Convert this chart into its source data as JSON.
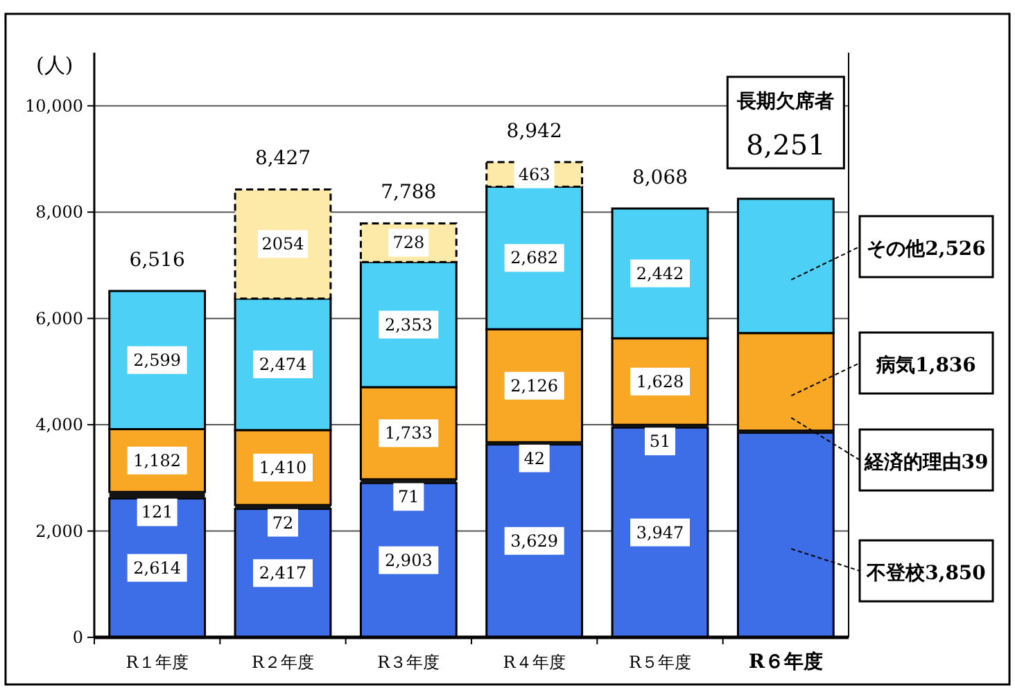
{
  "chart_data": {
    "type": "bar",
    "stacked": true,
    "ylabel": "(人)",
    "categories": [
      "R１年度",
      "R２年度",
      "R３年度",
      "R４年度",
      "R５年度",
      "R６年度"
    ],
    "series": [
      {
        "name": "不登校",
        "color": "#3d6ee8",
        "values": [
          2614,
          2417,
          2903,
          3629,
          3947,
          3850
        ],
        "value_labels": [
          "2,614",
          "2,417",
          "2,903",
          "3,629",
          "3,947",
          "3,850"
        ]
      },
      {
        "name": "経済的理由",
        "color": "#141414",
        "values": [
          121,
          72,
          71,
          42,
          51,
          39
        ],
        "value_labels": [
          "121",
          "72",
          "71",
          "42",
          "51",
          "39"
        ]
      },
      {
        "name": "病気",
        "color": "#f9a825",
        "values": [
          1182,
          1410,
          1733,
          2126,
          1628,
          1836
        ],
        "value_labels": [
          "1,182",
          "1,410",
          "1,733",
          "2,126",
          "1,628",
          "1,836"
        ]
      },
      {
        "name": "その他",
        "color": "#4dd0f5",
        "values": [
          2599,
          2474,
          2353,
          2682,
          2442,
          2526
        ],
        "value_labels": [
          "2,599",
          "2,474",
          "2,353",
          "2,682",
          "2,442",
          "2,526"
        ]
      },
      {
        "color": "#fde9a8",
        "line_style": "dashed",
        "values": [
          null,
          2054,
          728,
          463,
          null,
          null
        ],
        "value_labels": [
          null,
          "2054",
          "728",
          "463",
          null,
          null
        ]
      }
    ],
    "totals": [
      "6,516",
      "8,427",
      "7,788",
      "8,942",
      "8,068",
      "8,251"
    ],
    "annotations": [
      "長期欠席者"
    ],
    "ylim": [
      0,
      11000
    ],
    "yticks": [
      {
        "value": 0,
        "label": "0"
      },
      {
        "value": 2000,
        "label": "2,000"
      },
      {
        "value": 4000,
        "label": "4,000"
      },
      {
        "value": 6000,
        "label": "6,000"
      },
      {
        "value": 8000,
        "label": "8,000"
      },
      {
        "value": 10000,
        "label": "10,000"
      }
    ],
    "grid": "y"
  }
}
